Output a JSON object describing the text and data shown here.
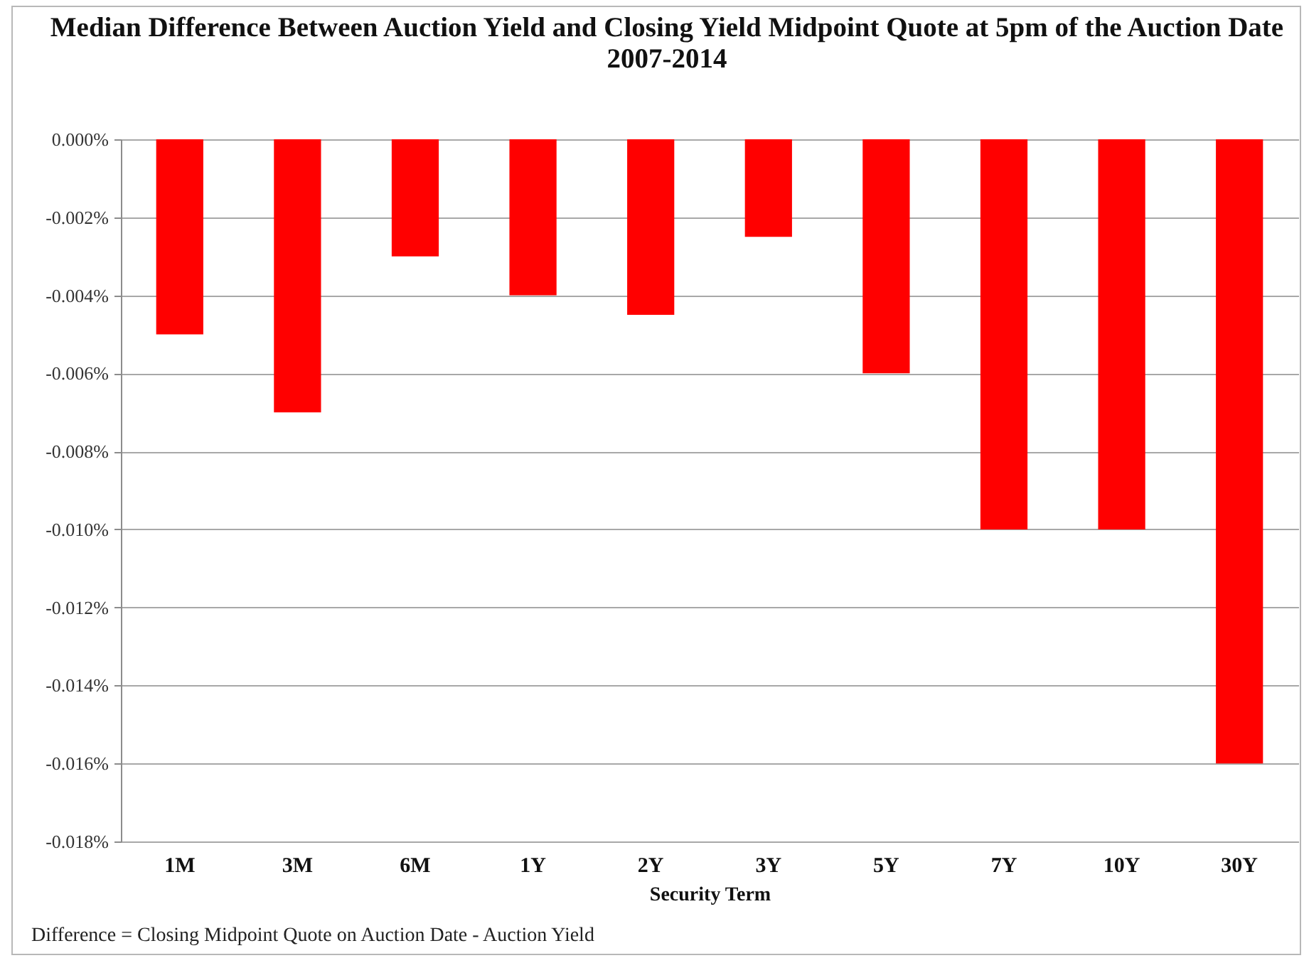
{
  "chart_data": {
    "type": "bar",
    "title": "Median Difference Between Auction Yield and Closing Yield Midpoint Quote at 5pm of the Auction Date\n2007-2014",
    "xlabel": "Security Term",
    "categories": [
      "1M",
      "3M",
      "6M",
      "1Y",
      "2Y",
      "3Y",
      "5Y",
      "7Y",
      "10Y",
      "30Y"
    ],
    "values": [
      -0.005,
      -0.007,
      -0.003,
      -0.004,
      -0.0045,
      -0.0025,
      -0.006,
      -0.01,
      -0.01,
      -0.016
    ],
    "color": "#ff0000",
    "ylim": [
      -0.018,
      0
    ],
    "yticks": [
      {
        "value": 0,
        "label": "0.000%"
      },
      {
        "value": -0.002,
        "label": "-0.002%"
      },
      {
        "value": -0.004,
        "label": "-0.004%"
      },
      {
        "value": -0.006,
        "label": "-0.006%"
      },
      {
        "value": -0.008,
        "label": "-0.008%"
      },
      {
        "value": -0.01,
        "label": "-0.010%"
      },
      {
        "value": -0.012,
        "label": "-0.012%"
      },
      {
        "value": -0.014,
        "label": "-0.014%"
      },
      {
        "value": -0.016,
        "label": "-0.016%"
      },
      {
        "value": -0.018,
        "label": "-0.018%"
      }
    ],
    "grid": "y",
    "annotations": [
      "Difference = Closing Midpoint Quote on Auction Date - Auction Yield"
    ]
  }
}
